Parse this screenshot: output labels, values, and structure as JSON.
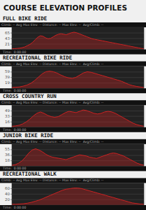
{
  "title": "COURSE ELEVATION PROFILES",
  "chart_data": [
    {
      "type": "area",
      "title": "FULL BIKE RIDE",
      "annotations": [
        "Climb: -- Avg Max Elev: -- Distance: -- Max Elev: --  Avg/Climb: --",
        "Time:  0:00:00"
      ],
      "values": [
        3,
        3,
        4,
        5,
        7,
        10,
        15,
        20,
        28,
        38,
        48,
        54,
        52,
        46,
        42,
        44,
        50,
        56,
        60,
        62,
        60,
        58,
        62,
        66,
        68,
        66,
        62,
        58,
        54,
        50,
        46,
        42,
        40,
        38,
        36,
        34,
        32,
        30,
        28,
        26,
        24,
        22,
        20,
        18,
        16,
        14,
        12,
        10,
        8,
        6,
        4,
        3
      ],
      "color": "#cc2222",
      "ylim": [
        0,
        87.4
      ],
      "yticks": [
        21,
        43,
        65
      ],
      "grid": true,
      "tick_labels": "y"
    },
    {
      "type": "area",
      "title": "RECREATIONAL BIKE RIDE",
      "annotations": [
        "Climb: -- Avg Max Elev: -- Distance: -- Max Elev: --  Avg/Climb: --",
        "Time:  0:00:00"
      ],
      "values": [
        3,
        4,
        5,
        8,
        12,
        18,
        28,
        40,
        52,
        60,
        62,
        60,
        55,
        48,
        42,
        38,
        36,
        40,
        48,
        56,
        60,
        58,
        54,
        50,
        46,
        42,
        38,
        34,
        30,
        26,
        20,
        14,
        10,
        7,
        5,
        3
      ],
      "color": "#cc2222",
      "ylim": [
        0,
        79.9
      ],
      "yticks": [
        19,
        39,
        59
      ],
      "grid": true,
      "tick_labels": "y"
    },
    {
      "type": "area",
      "title": "CROSS COUNTRY RUN",
      "annotations": [
        "Climb: -- Avg Max Elev: -- Distance: -- Max Elev: --  Avg/Climb: --",
        "Time:  0:00:00"
      ],
      "values": [
        3,
        4,
        6,
        10,
        16,
        24,
        34,
        42,
        46,
        42,
        36,
        32,
        30,
        32,
        38,
        44,
        48,
        46,
        44,
        48,
        52,
        50,
        46,
        42,
        40,
        42,
        46,
        48,
        46,
        42,
        36,
        30,
        24,
        18,
        12,
        8,
        5,
        3
      ],
      "color": "#cc2222",
      "ylim": [
        0,
        66.5
      ],
      "yticks": [
        16,
        33,
        49
      ],
      "grid": true,
      "tick_labels": "y"
    },
    {
      "type": "area",
      "title": "JUNIOR BIKE RIDE",
      "annotations": [
        "Climb: -- Avg Max Elev: -- Distance: -- Max Elev: --  Avg/Climb: --",
        "Time:  0:00:00"
      ],
      "values": [
        3,
        5,
        10,
        18,
        30,
        44,
        54,
        58,
        54,
        48,
        40,
        34,
        30,
        28,
        26,
        24,
        22,
        26,
        30,
        34,
        38,
        36,
        34,
        30,
        28,
        26,
        30,
        34,
        38,
        42,
        44,
        42,
        38,
        34,
        28,
        22,
        16,
        10,
        6,
        3
      ],
      "color": "#cc2222",
      "ylim": [
        0,
        73.8
      ],
      "yticks": [
        18,
        36,
        55
      ],
      "grid": true,
      "tick_labels": "y"
    },
    {
      "type": "area",
      "title": "RECREATIONAL WALK",
      "annotations": [
        "Climb: -- Avg Max Elev: -- Distance: -- Max Elev: --  Avg/Climb: --",
        "Time:  0:00:00"
      ],
      "values": [
        3,
        3,
        4,
        5,
        7,
        10,
        14,
        18,
        24,
        30,
        36,
        42,
        48,
        54,
        58,
        60,
        62,
        62,
        60,
        56,
        52,
        48,
        44,
        40,
        36,
        32,
        28,
        24,
        20,
        16,
        12,
        8,
        6,
        4,
        3
      ],
      "color": "#cc2222",
      "ylim": [
        0,
        80.5
      ],
      "yticks": [
        20,
        40,
        60
      ],
      "grid": true,
      "tick_labels": "y"
    }
  ]
}
